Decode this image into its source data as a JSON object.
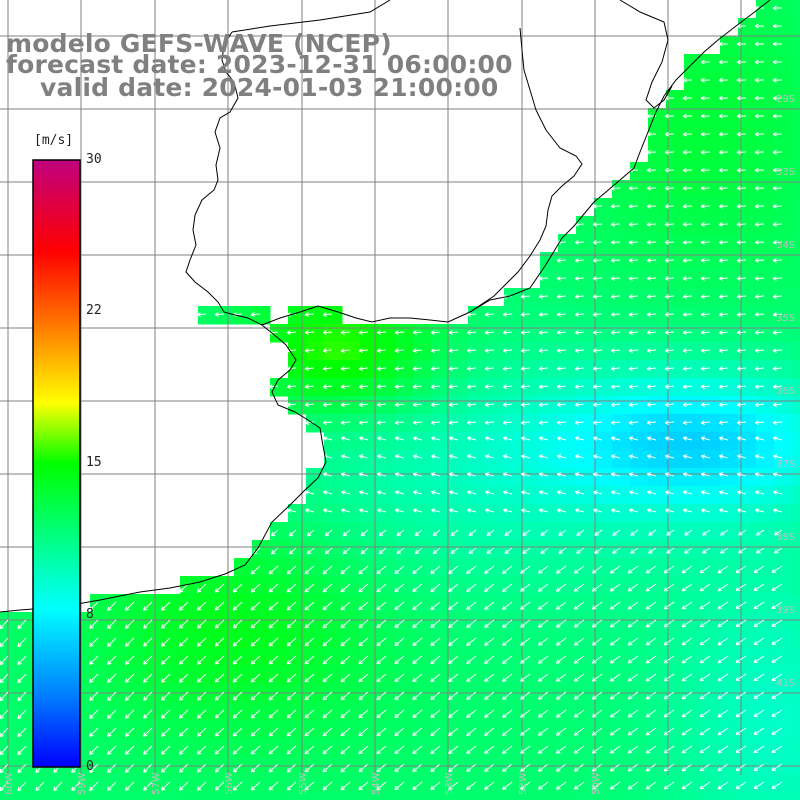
{
  "title": {
    "model": "modelo GEFS-WAVE (NCEP)",
    "forecast": "forecast date: 2023-12-31 06:00:00",
    "valid": "valid date: 2024-01-03 21:00:00"
  },
  "colorbar": {
    "unit": "[m/s]",
    "range": [
      0,
      30
    ],
    "ticks": [
      {
        "value": 0,
        "label": "0"
      },
      {
        "value": 8,
        "label": "8"
      },
      {
        "value": 15,
        "label": "15"
      },
      {
        "value": 22,
        "label": "22"
      },
      {
        "value": 30,
        "label": "30"
      }
    ],
    "colors": [
      "#0000ff",
      "#0080ff",
      "#00ffff",
      "#00ff00",
      "#ffff00",
      "#ff8000",
      "#ff0000",
      "#c0007f"
    ]
  },
  "map": {
    "lon_range": [
      -60,
      -49
    ],
    "lat_range": [
      -42,
      -24
    ],
    "grid_step_deg": 1,
    "vectors_color": "#ffffff",
    "land_color": "#ffffff",
    "coastline_color": "#000000",
    "grid_color": "#808080",
    "lat_labels": [
      "29S",
      "33S",
      "34S",
      "35S",
      "36S",
      "37S",
      "38S",
      "39S",
      "41S"
    ],
    "lon_labels": [
      "60W",
      "59W",
      "57W",
      "56W",
      "55W",
      "54W",
      "53W",
      "52W",
      "50W"
    ]
  }
}
